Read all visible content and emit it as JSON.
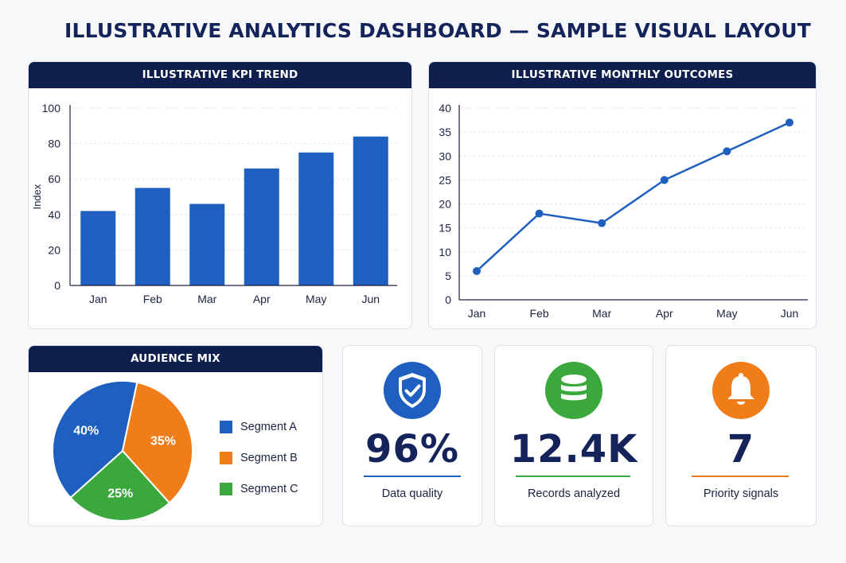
{
  "page": {
    "title": "ILLUSTRATIVE ANALYTICS DASHBOARD — SAMPLE VISUAL LAYOUT"
  },
  "colors": {
    "navy": "#0f1f4d",
    "blue": "#1f5fbf",
    "orange": "#f07d1a",
    "green": "#3aa83c",
    "grid": "#e3e6eb"
  },
  "chart_data": [
    {
      "type": "bar",
      "title": "ILLUSTRATIVE KPI TREND",
      "categories": [
        "Jan",
        "Feb",
        "Mar",
        "Apr",
        "May",
        "Jun"
      ],
      "values": [
        42,
        55,
        46,
        66,
        75,
        84
      ],
      "xlabel": "",
      "ylabel": "Index",
      "ylim": [
        0,
        100
      ],
      "yticks": [
        0,
        20,
        40,
        60,
        80,
        100
      ],
      "grid": true,
      "color": "#1f5fbf"
    },
    {
      "type": "line",
      "title": "ILLUSTRATIVE MONTHLY OUTCOMES",
      "categories": [
        "Jan",
        "Feb",
        "Mar",
        "Apr",
        "May",
        "Jun"
      ],
      "values": [
        6,
        18,
        16,
        25,
        31,
        37
      ],
      "xlabel": "",
      "ylabel": "",
      "ylim": [
        0,
        40
      ],
      "yticks": [
        0,
        5,
        10,
        15,
        20,
        25,
        30,
        35,
        40
      ],
      "grid": true,
      "color": "#1f5fbf"
    },
    {
      "type": "pie",
      "title": "AUDIENCE MIX",
      "labels": [
        "Segment A",
        "Segment B",
        "Segment C"
      ],
      "values": [
        40,
        35,
        25
      ],
      "value_labels": [
        "40%",
        "35%",
        "25%"
      ],
      "colors": [
        "#1f5fbf",
        "#f07d1a",
        "#3aa83c"
      ],
      "legend": "right"
    }
  ],
  "stats": [
    {
      "value": "96%",
      "label": "Data quality",
      "icon": "shield-check-icon",
      "color": "#1f5fbf"
    },
    {
      "value": "12.4K",
      "label": "Records analyzed",
      "icon": "database-icon",
      "color": "#3aa83c"
    },
    {
      "value": "7",
      "label": "Priority signals",
      "icon": "bell-icon",
      "color": "#f07d1a"
    }
  ]
}
